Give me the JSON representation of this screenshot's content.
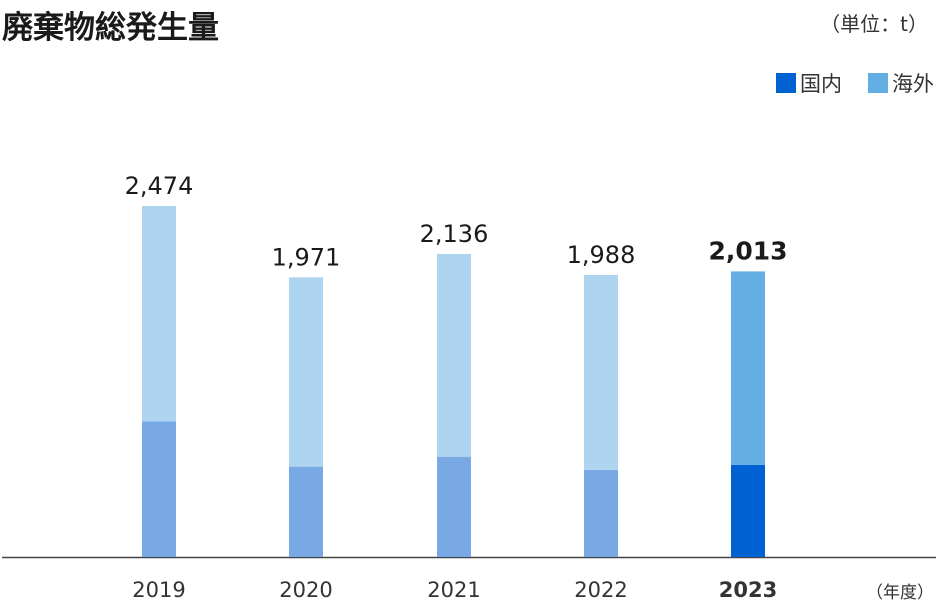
{
  "title": "廃棄物総発生量",
  "unit_label": "（単位：t）",
  "x_unit_label": "（年度）",
  "chart_data": {
    "type": "bar",
    "stacked": true,
    "categories": [
      "2019",
      "2020",
      "2021",
      "2022",
      "2023"
    ],
    "totals_labels": [
      "2,474",
      "1,971",
      "2,136",
      "1,988",
      "2,013"
    ],
    "highlight_category": "2023",
    "series": [
      {
        "name": "国内",
        "values": [
          955,
          637,
          707,
          614,
          649
        ]
      },
      {
        "name": "海外",
        "values": [
          1519,
          1334,
          1429,
          1374,
          1364
        ]
      }
    ],
    "legend_position": "top-right",
    "colors": {
      "domestic": "#0062D2",
      "overseas": "#62AEE3",
      "domestic_muted": "#78A9E5",
      "overseas_muted": "#AED4EF"
    },
    "ylim": [
      0,
      2474
    ],
    "grid": false
  }
}
